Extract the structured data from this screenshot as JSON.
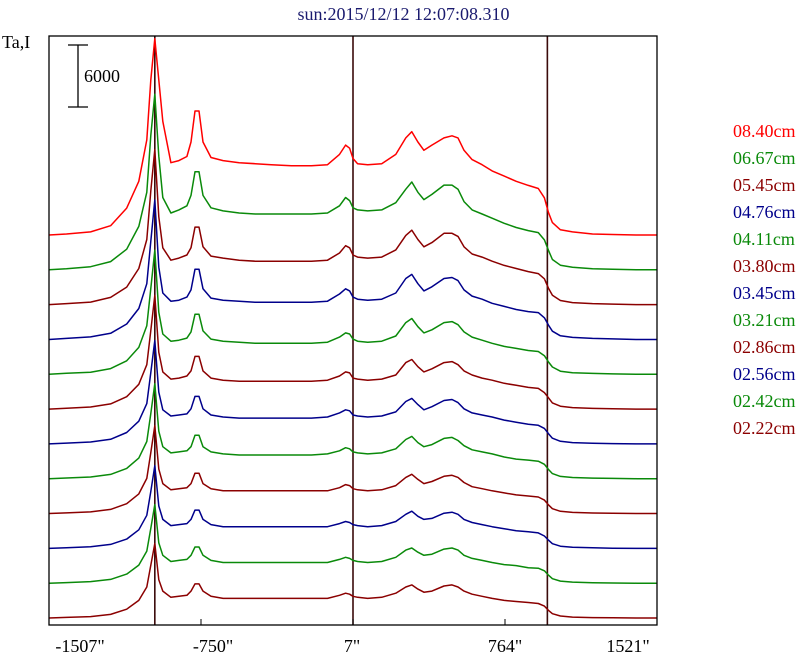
{
  "chart_data": {
    "type": "line",
    "title": "sun:2015/12/12 12:07:08.310",
    "ylabel": "Ta,I",
    "scale_bar_label": "6000",
    "scale_bar_value": 6000,
    "x_unit": "arcsec",
    "xlim": [
      -1507,
      1521
    ],
    "x_ticks": [
      -1507,
      -750,
      7,
      764,
      1521
    ],
    "x_tick_labels": [
      "-1507\"",
      "-750\"",
      "7\"",
      "764\"",
      "1521\""
    ],
    "vertical_markers": [
      -980,
      7,
      975
    ],
    "grid": false,
    "legend_position": "right",
    "x": [
      -1507,
      -1420,
      -1300,
      -1200,
      -1120,
      -1060,
      -1020,
      -1000,
      -980,
      -960,
      -940,
      -900,
      -860,
      -820,
      -800,
      -780,
      -760,
      -740,
      -700,
      -640,
      -560,
      -480,
      -400,
      -300,
      -200,
      -120,
      -60,
      -30,
      -10,
      7,
      30,
      80,
      150,
      220,
      270,
      300,
      330,
      360,
      400,
      460,
      500,
      530,
      560,
      600,
      650,
      700,
      760,
      820,
      880,
      930,
      960,
      980,
      1000,
      1040,
      1100,
      1200,
      1300,
      1420,
      1521
    ],
    "series": [
      {
        "name": "08.40cm",
        "color": "#ff0000",
        "values": [
          0,
          100,
          300,
          900,
          2600,
          5200,
          9200,
          15000,
          19000,
          15000,
          11000,
          7000,
          7200,
          7600,
          9000,
          12000,
          12000,
          9000,
          7500,
          7200,
          7000,
          6900,
          6800,
          6700,
          6700,
          6800,
          7800,
          8700,
          8400,
          7400,
          6900,
          6800,
          6900,
          7800,
          9400,
          10000,
          9000,
          8200,
          8700,
          9400,
          9600,
          9400,
          8200,
          7300,
          6800,
          6200,
          5700,
          5200,
          4800,
          4500,
          3600,
          2200,
          1200,
          500,
          300,
          100,
          50,
          0,
          0
        ]
      },
      {
        "name": "06.67cm",
        "color": "#0a8a0a",
        "values": [
          0,
          100,
          300,
          800,
          2000,
          4200,
          7500,
          13000,
          17000,
          11000,
          7000,
          5500,
          5800,
          6200,
          7200,
          9500,
          9500,
          7200,
          6000,
          5700,
          5500,
          5400,
          5400,
          5400,
          5400,
          5500,
          6200,
          7000,
          6700,
          6000,
          5800,
          5700,
          5800,
          6500,
          7800,
          8500,
          7500,
          6800,
          7300,
          8200,
          8200,
          7800,
          6600,
          5800,
          5400,
          5000,
          4500,
          4100,
          3800,
          3600,
          2900,
          1900,
          1000,
          450,
          250,
          100,
          50,
          0,
          0
        ]
      },
      {
        "name": "05.45cm",
        "color": "#8b0000",
        "values": [
          0,
          100,
          250,
          700,
          1700,
          3500,
          6300,
          11000,
          15000,
          8500,
          5500,
          4300,
          4500,
          4800,
          5500,
          7500,
          7500,
          5600,
          4700,
          4500,
          4300,
          4200,
          4200,
          4200,
          4200,
          4300,
          5000,
          5700,
          5500,
          4800,
          4600,
          4500,
          4600,
          5300,
          6700,
          7200,
          6300,
          5600,
          6000,
          6900,
          6900,
          6600,
          5600,
          4900,
          4600,
          4200,
          3800,
          3500,
          3200,
          3000,
          2500,
          1600,
          900,
          400,
          200,
          100,
          50,
          0,
          0
        ]
      },
      {
        "name": "04.76cm",
        "color": "#00008b",
        "values": [
          0,
          100,
          250,
          600,
          1500,
          3000,
          5400,
          9500,
          13500,
          7000,
          4500,
          3700,
          3800,
          4100,
          4800,
          6800,
          6800,
          4900,
          4000,
          3800,
          3700,
          3600,
          3600,
          3600,
          3600,
          3700,
          4400,
          4900,
          4700,
          4100,
          3900,
          3800,
          3900,
          4500,
          5900,
          6300,
          5400,
          4700,
          5100,
          5900,
          6000,
          5700,
          4800,
          4200,
          3900,
          3500,
          3200,
          2900,
          2700,
          2600,
          2100,
          1400,
          800,
          350,
          200,
          100,
          50,
          0,
          0
        ]
      },
      {
        "name": "04.11cm",
        "color": "#0a8a0a",
        "values": [
          0,
          100,
          200,
          550,
          1300,
          2600,
          4700,
          8300,
          12000,
          6000,
          3900,
          3200,
          3300,
          3500,
          4100,
          5800,
          5800,
          4200,
          3400,
          3200,
          3100,
          3000,
          3000,
          3000,
          3000,
          3100,
          3600,
          4000,
          3900,
          3400,
          3200,
          3100,
          3200,
          3700,
          5000,
          5400,
          4600,
          4000,
          4300,
          5000,
          5100,
          4800,
          4100,
          3600,
          3300,
          3000,
          2700,
          2500,
          2300,
          2200,
          1800,
          1200,
          700,
          300,
          150,
          80,
          40,
          0,
          0
        ]
      },
      {
        "name": "03.80cm",
        "color": "#8b0000",
        "values": [
          0,
          80,
          200,
          500,
          1200,
          2400,
          4300,
          7600,
          11000,
          5500,
          3600,
          2900,
          3000,
          3200,
          3700,
          5100,
          5100,
          3700,
          3000,
          2800,
          2700,
          2700,
          2700,
          2700,
          2700,
          2800,
          3200,
          3600,
          3500,
          3000,
          2900,
          2800,
          2900,
          3300,
          4500,
          4800,
          4100,
          3600,
          3900,
          4500,
          4600,
          4300,
          3700,
          3300,
          3000,
          2800,
          2500,
          2300,
          2100,
          2000,
          1600,
          1100,
          600,
          280,
          140,
          70,
          30,
          0,
          0
        ]
      },
      {
        "name": "03.45cm",
        "color": "#00008b",
        "values": [
          0,
          80,
          180,
          450,
          1100,
          2200,
          3900,
          6900,
          10000,
          5000,
          3300,
          2700,
          2800,
          2900,
          3400,
          4600,
          4600,
          3400,
          2800,
          2600,
          2500,
          2500,
          2500,
          2500,
          2500,
          2600,
          3000,
          3300,
          3200,
          2800,
          2700,
          2600,
          2700,
          3100,
          4100,
          4400,
          3800,
          3300,
          3600,
          4200,
          4300,
          4000,
          3400,
          3000,
          2800,
          2600,
          2300,
          2100,
          1900,
          1800,
          1500,
          1000,
          550,
          250,
          130,
          60,
          30,
          0,
          0
        ]
      },
      {
        "name": "03.21cm",
        "color": "#0a8a0a",
        "values": [
          0,
          70,
          170,
          420,
          1000,
          2000,
          3600,
          6300,
          9200,
          4600,
          3100,
          2500,
          2600,
          2700,
          3100,
          4200,
          4200,
          3100,
          2600,
          2400,
          2300,
          2300,
          2300,
          2300,
          2300,
          2400,
          2700,
          3000,
          2900,
          2600,
          2500,
          2400,
          2500,
          2900,
          3800,
          4100,
          3500,
          3100,
          3300,
          3900,
          4000,
          3700,
          3200,
          2800,
          2600,
          2400,
          2100,
          1900,
          1800,
          1700,
          1400,
          900,
          500,
          230,
          120,
          60,
          30,
          0,
          0
        ]
      },
      {
        "name": "02.86cm",
        "color": "#8b0000",
        "values": [
          0,
          60,
          160,
          400,
          950,
          1900,
          3400,
          5900,
          8500,
          4300,
          2900,
          2300,
          2400,
          2500,
          2900,
          3900,
          3900,
          2900,
          2400,
          2200,
          2200,
          2200,
          2200,
          2200,
          2200,
          2200,
          2500,
          2800,
          2700,
          2400,
          2300,
          2200,
          2300,
          2700,
          3500,
          3800,
          3300,
          2900,
          3100,
          3600,
          3700,
          3500,
          3000,
          2600,
          2400,
          2200,
          2000,
          1800,
          1700,
          1600,
          1300,
          850,
          470,
          220,
          110,
          50,
          20,
          0,
          0
        ]
      },
      {
        "name": "02.56cm",
        "color": "#00008b",
        "values": [
          0,
          60,
          150,
          380,
          900,
          1800,
          3200,
          5500,
          8000,
          4100,
          2800,
          2200,
          2300,
          2400,
          2800,
          3700,
          3700,
          2800,
          2300,
          2100,
          2100,
          2100,
          2100,
          2100,
          2100,
          2100,
          2400,
          2600,
          2500,
          2300,
          2200,
          2100,
          2200,
          2600,
          3300,
          3600,
          3100,
          2800,
          2900,
          3400,
          3500,
          3300,
          2800,
          2500,
          2300,
          2100,
          1900,
          1700,
          1600,
          1500,
          1200,
          800,
          450,
          210,
          100,
          50,
          20,
          0,
          0
        ]
      },
      {
        "name": "02.42cm",
        "color": "#0a8a0a",
        "values": [
          0,
          60,
          150,
          370,
          880,
          1750,
          3100,
          5300,
          7600,
          3900,
          2700,
          2100,
          2200,
          2300,
          2700,
          3500,
          3500,
          2700,
          2200,
          2000,
          2000,
          2000,
          2000,
          2000,
          2000,
          2000,
          2300,
          2500,
          2400,
          2200,
          2100,
          2000,
          2100,
          2500,
          3200,
          3400,
          3000,
          2700,
          2800,
          3300,
          3400,
          3200,
          2700,
          2400,
          2200,
          2000,
          1800,
          1700,
          1500,
          1450,
          1200,
          780,
          430,
          200,
          100,
          50,
          20,
          0,
          0
        ]
      },
      {
        "name": "02.22cm",
        "color": "#8b0000",
        "values": [
          0,
          60,
          140,
          350,
          850,
          1700,
          3000,
          5100,
          7200,
          3700,
          2600,
          2000,
          2100,
          2200,
          2600,
          3300,
          3300,
          2600,
          2100,
          1900,
          1900,
          1900,
          1900,
          1900,
          1900,
          1900,
          2200,
          2400,
          2300,
          2100,
          2000,
          1900,
          2000,
          2400,
          3000,
          3200,
          2800,
          2500,
          2600,
          3100,
          3200,
          3000,
          2600,
          2300,
          2100,
          1900,
          1700,
          1600,
          1500,
          1400,
          1150,
          750,
          420,
          190,
          90,
          40,
          20,
          0,
          0
        ]
      }
    ]
  }
}
